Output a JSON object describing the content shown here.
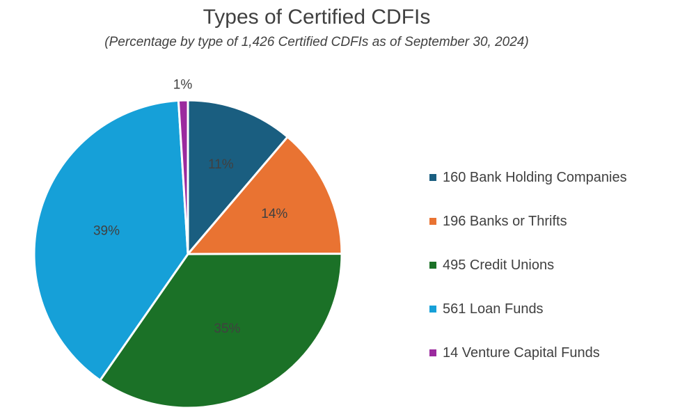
{
  "chart_data": {
    "type": "pie",
    "title": "Types of Certified CDFIs",
    "subtitle": "(Percentage by type of 1,426 Certified CDFIs as of September 30, 2024)",
    "slices": [
      {
        "legend": "160 Bank Holding Companies",
        "count": 160,
        "label": "11%",
        "color": "#1a5e80"
      },
      {
        "legend": "196 Banks or Thrifts",
        "count": 196,
        "label": "14%",
        "color": "#e97332"
      },
      {
        "legend": "495 Credit Unions",
        "count": 495,
        "label": "35%",
        "color": "#1b7127"
      },
      {
        "legend": "561 Loan Funds",
        "count": 561,
        "label": "39%",
        "color": "#16a0d8"
      },
      {
        "legend": "14 Venture Capital Funds",
        "count": 14,
        "label": "1%",
        "color": "#9b2a9e"
      }
    ],
    "legend_position": "right"
  }
}
